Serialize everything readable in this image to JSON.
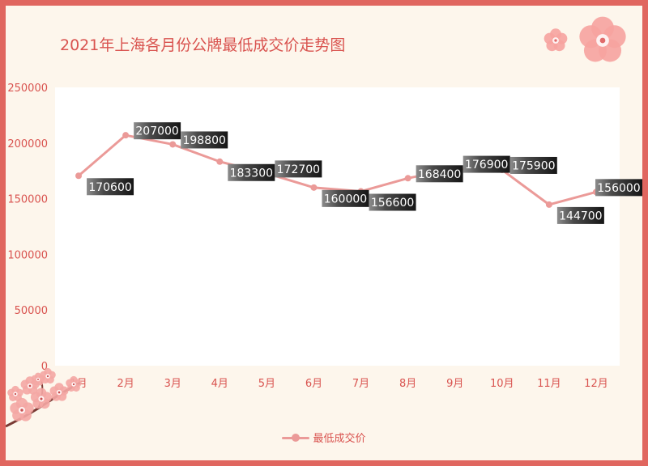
{
  "page": {
    "title": "2021年上海各月份公牌最低成交价走势图"
  },
  "legend": {
    "label": "最低成交价"
  },
  "colors": {
    "border": "#e0665f",
    "background": "#fdf6ec",
    "line": "#eb9a98",
    "text": "#d9534f"
  },
  "chart_data": {
    "type": "line",
    "title": "2021年上海各月份公牌最低成交价走势图",
    "xlabel": "",
    "ylabel": "",
    "categories": [
      "1月",
      "2月",
      "3月",
      "4月",
      "5月",
      "6月",
      "7月",
      "8月",
      "9月",
      "10月",
      "11月",
      "12月"
    ],
    "series": [
      {
        "name": "最低成交价",
        "values": [
          170600,
          207000,
          198800,
          183300,
          172700,
          160000,
          156600,
          168400,
          176900,
          175900,
          144700,
          156000
        ]
      }
    ],
    "ylim": [
      0,
      250000
    ],
    "yticks": [
      0,
      50000,
      100000,
      150000,
      200000,
      250000
    ],
    "grid": false,
    "legend_position": "bottom"
  }
}
